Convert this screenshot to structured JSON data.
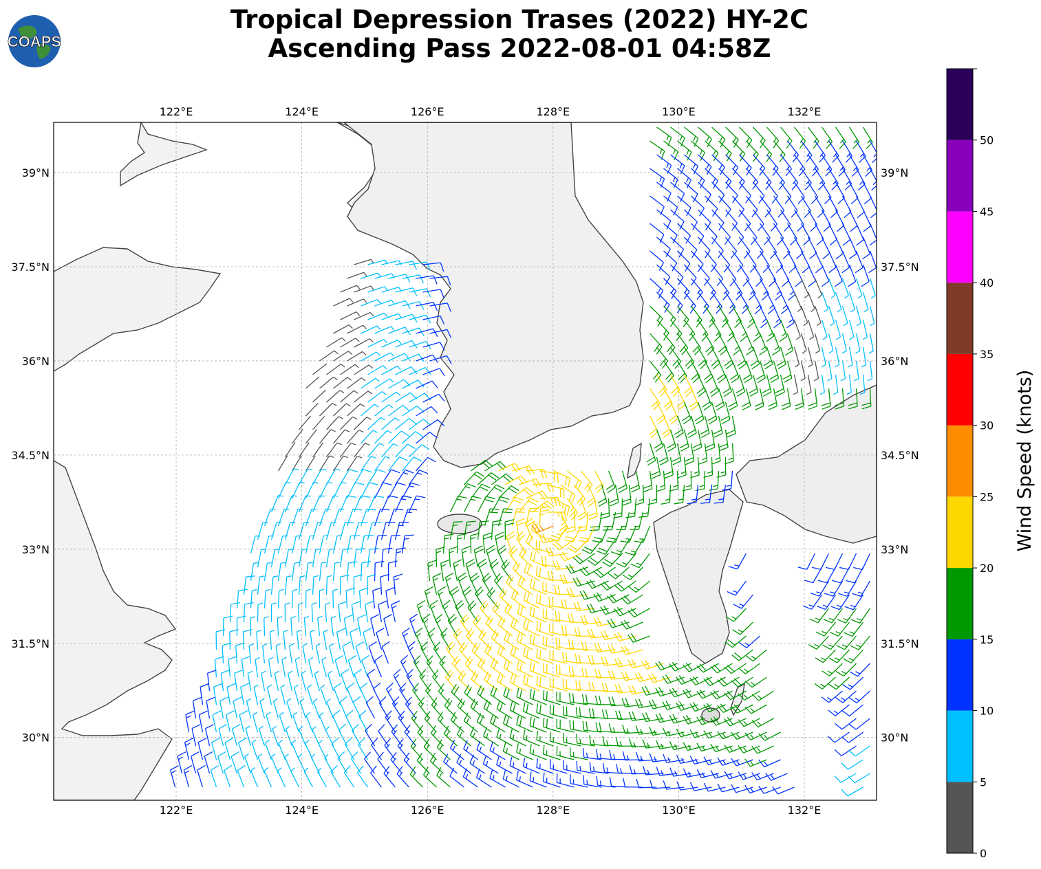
{
  "title": {
    "line1": "Tropical Depression Trases (2022) HY-2C",
    "line2": "Ascending Pass 2022-08-01 04:58Z"
  },
  "logo": {
    "text": "COAPS",
    "icon": "globe-logo-icon"
  },
  "map": {
    "lon_range": [
      120.05,
      133.15
    ],
    "lat_range": [
      29.0,
      39.8
    ],
    "lon_ticks": [
      {
        "value": 122,
        "label": "122°E"
      },
      {
        "value": 124,
        "label": "124°E"
      },
      {
        "value": 126,
        "label": "126°E"
      },
      {
        "value": 128,
        "label": "128°E"
      },
      {
        "value": 130,
        "label": "130°E"
      },
      {
        "value": 132,
        "label": "132°E"
      }
    ],
    "lat_ticks": [
      {
        "value": 30,
        "label": "30°N"
      },
      {
        "value": 31.5,
        "label": "31.5°N"
      },
      {
        "value": 33,
        "label": "33°N"
      },
      {
        "value": 34.5,
        "label": "34.5°N"
      },
      {
        "value": 36,
        "label": "36°N"
      },
      {
        "value": 37.5,
        "label": "37.5°N"
      },
      {
        "value": 39,
        "label": "39°N"
      }
    ],
    "grid": true,
    "land_color": "#f4f4f4",
    "ocean_color": "#ffffff",
    "coast_color": "#444444"
  },
  "colorbar": {
    "label": "Wind Speed (knots)",
    "bounds": [
      0,
      5,
      10,
      15,
      20,
      25,
      30,
      35,
      40,
      45,
      50,
      55
    ],
    "tick_labels": [
      "0",
      "5",
      "10",
      "15",
      "20",
      "25",
      "30",
      "35",
      "40",
      "45",
      "50"
    ],
    "colors": [
      "#555555",
      "#00bfff",
      "#0033ff",
      "#009900",
      "#ffd700",
      "#ff8c00",
      "#ff0000",
      "#7f3a28",
      "#ff00ff",
      "#8800bb",
      "#2b005a"
    ]
  }
}
